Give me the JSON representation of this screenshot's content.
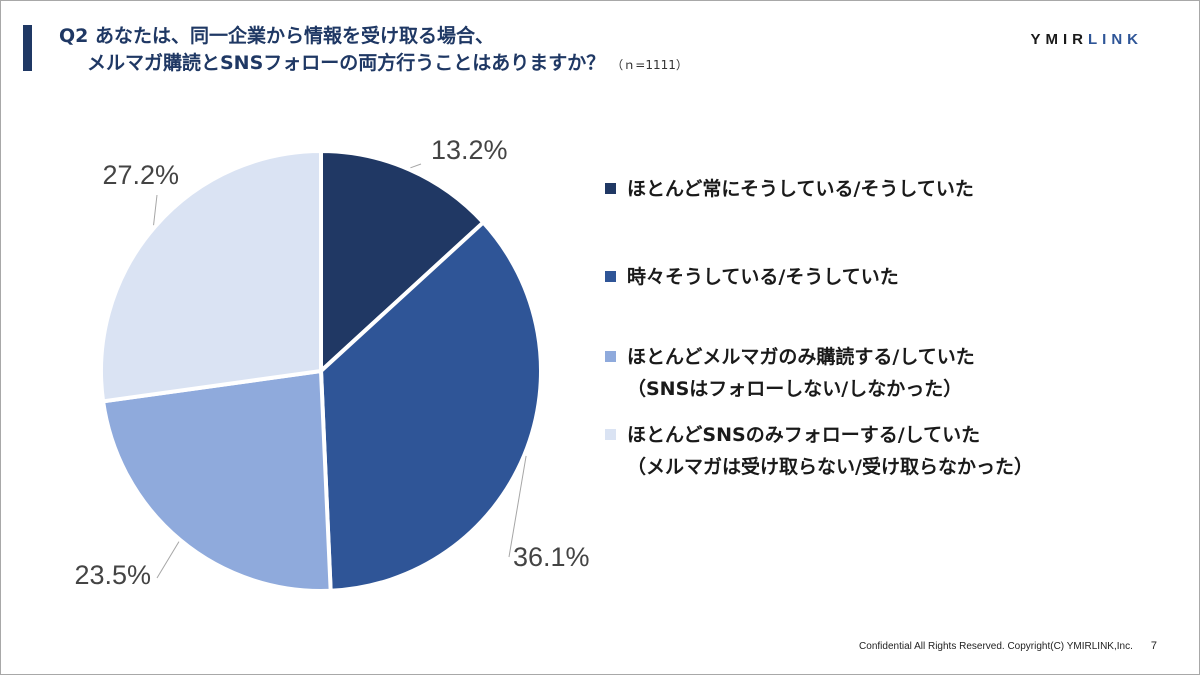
{
  "header": {
    "title_line1": "Q2 あなたは、同一企業から情報を受け取る場合、",
    "title_line2": "メルマガ購読とSNSフォローの両方行うことはありますか？",
    "sample_note": "（ｎ=1111）",
    "logo_part1": "YMIR",
    "logo_part2": "LINK"
  },
  "chart_data": {
    "type": "pie",
    "title": "",
    "slices": [
      {
        "label": "ほとんど常にそうしている/そうしていた",
        "label_line2": "",
        "value": 13.2,
        "display": "13.2%",
        "color": "#203864"
      },
      {
        "label": "時々そうしている/そうしていた",
        "label_line2": "",
        "value": 36.1,
        "display": "36.1%",
        "color": "#2f5597"
      },
      {
        "label": "ほとんどメルマガのみ購読する/していた",
        "label_line2": "（SNSはフォローしない/しなかった）",
        "value": 23.5,
        "display": "23.5%",
        "color": "#8faadc"
      },
      {
        "label": "ほとんどSNSのみフォローする/していた",
        "label_line2": "（メルマガは受け取らない/受け取らなかった）",
        "value": 27.2,
        "display": "27.2%",
        "color": "#dae3f3"
      }
    ],
    "legend_position": "right"
  },
  "footer": {
    "copyright": "Confidential All Rights Reserved. Copyright(C) YMIRLINK,Inc.",
    "page_number": "7"
  }
}
